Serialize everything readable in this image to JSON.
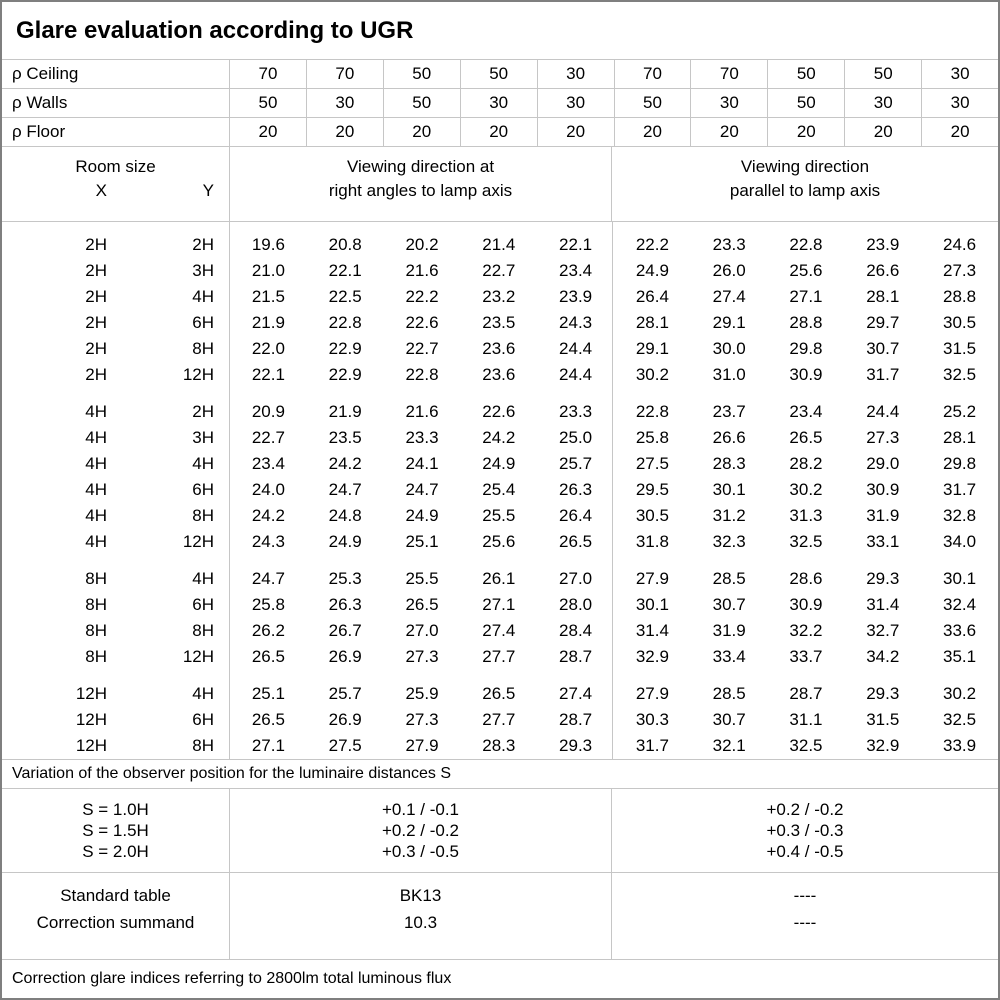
{
  "title": "Glare evaluation according to UGR",
  "reflectance_rows": [
    {
      "label": "ρ Ceiling",
      "values": [
        "70",
        "70",
        "50",
        "50",
        "30",
        "70",
        "70",
        "50",
        "50",
        "30"
      ]
    },
    {
      "label": "ρ Walls",
      "values": [
        "50",
        "30",
        "50",
        "30",
        "30",
        "50",
        "30",
        "50",
        "30",
        "30"
      ]
    },
    {
      "label": "ρ Floor",
      "values": [
        "20",
        "20",
        "20",
        "20",
        "20",
        "20",
        "20",
        "20",
        "20",
        "20"
      ]
    }
  ],
  "room_header": {
    "title": "Room size",
    "x_label": "X",
    "y_label": "Y"
  },
  "direction_headers": {
    "perpendicular": [
      "Viewing direction at",
      "right angles to lamp axis"
    ],
    "parallel": [
      "Viewing direction",
      "parallel to lamp axis"
    ]
  },
  "ugr_blocks": [
    {
      "rows": [
        {
          "x": "2H",
          "y": "2H",
          "values": [
            "19.6",
            "20.8",
            "20.2",
            "21.4",
            "22.1",
            "22.2",
            "23.3",
            "22.8",
            "23.9",
            "24.6"
          ]
        },
        {
          "x": "2H",
          "y": "3H",
          "values": [
            "21.0",
            "22.1",
            "21.6",
            "22.7",
            "23.4",
            "24.9",
            "26.0",
            "25.6",
            "26.6",
            "27.3"
          ]
        },
        {
          "x": "2H",
          "y": "4H",
          "values": [
            "21.5",
            "22.5",
            "22.2",
            "23.2",
            "23.9",
            "26.4",
            "27.4",
            "27.1",
            "28.1",
            "28.8"
          ]
        },
        {
          "x": "2H",
          "y": "6H",
          "values": [
            "21.9",
            "22.8",
            "22.6",
            "23.5",
            "24.3",
            "28.1",
            "29.1",
            "28.8",
            "29.7",
            "30.5"
          ]
        },
        {
          "x": "2H",
          "y": "8H",
          "values": [
            "22.0",
            "22.9",
            "22.7",
            "23.6",
            "24.4",
            "29.1",
            "30.0",
            "29.8",
            "30.7",
            "31.5"
          ]
        },
        {
          "x": "2H",
          "y": "12H",
          "values": [
            "22.1",
            "22.9",
            "22.8",
            "23.6",
            "24.4",
            "30.2",
            "31.0",
            "30.9",
            "31.7",
            "32.5"
          ]
        }
      ]
    },
    {
      "rows": [
        {
          "x": "4H",
          "y": "2H",
          "values": [
            "20.9",
            "21.9",
            "21.6",
            "22.6",
            "23.3",
            "22.8",
            "23.7",
            "23.4",
            "24.4",
            "25.2"
          ]
        },
        {
          "x": "4H",
          "y": "3H",
          "values": [
            "22.7",
            "23.5",
            "23.3",
            "24.2",
            "25.0",
            "25.8",
            "26.6",
            "26.5",
            "27.3",
            "28.1"
          ]
        },
        {
          "x": "4H",
          "y": "4H",
          "values": [
            "23.4",
            "24.2",
            "24.1",
            "24.9",
            "25.7",
            "27.5",
            "28.3",
            "28.2",
            "29.0",
            "29.8"
          ]
        },
        {
          "x": "4H",
          "y": "6H",
          "values": [
            "24.0",
            "24.7",
            "24.7",
            "25.4",
            "26.3",
            "29.5",
            "30.1",
            "30.2",
            "30.9",
            "31.7"
          ]
        },
        {
          "x": "4H",
          "y": "8H",
          "values": [
            "24.2",
            "24.8",
            "24.9",
            "25.5",
            "26.4",
            "30.5",
            "31.2",
            "31.3",
            "31.9",
            "32.8"
          ]
        },
        {
          "x": "4H",
          "y": "12H",
          "values": [
            "24.3",
            "24.9",
            "25.1",
            "25.6",
            "26.5",
            "31.8",
            "32.3",
            "32.5",
            "33.1",
            "34.0"
          ]
        }
      ]
    },
    {
      "rows": [
        {
          "x": "8H",
          "y": "4H",
          "values": [
            "24.7",
            "25.3",
            "25.5",
            "26.1",
            "27.0",
            "27.9",
            "28.5",
            "28.6",
            "29.3",
            "30.1"
          ]
        },
        {
          "x": "8H",
          "y": "6H",
          "values": [
            "25.8",
            "26.3",
            "26.5",
            "27.1",
            "28.0",
            "30.1",
            "30.7",
            "30.9",
            "31.4",
            "32.4"
          ]
        },
        {
          "x": "8H",
          "y": "8H",
          "values": [
            "26.2",
            "26.7",
            "27.0",
            "27.4",
            "28.4",
            "31.4",
            "31.9",
            "32.2",
            "32.7",
            "33.6"
          ]
        },
        {
          "x": "8H",
          "y": "12H",
          "values": [
            "26.5",
            "26.9",
            "27.3",
            "27.7",
            "28.7",
            "32.9",
            "33.4",
            "33.7",
            "34.2",
            "35.1"
          ]
        }
      ]
    },
    {
      "rows": [
        {
          "x": "12H",
          "y": "4H",
          "values": [
            "25.1",
            "25.7",
            "25.9",
            "26.5",
            "27.4",
            "27.9",
            "28.5",
            "28.7",
            "29.3",
            "30.2"
          ]
        },
        {
          "x": "12H",
          "y": "6H",
          "values": [
            "26.5",
            "26.9",
            "27.3",
            "27.7",
            "28.7",
            "30.3",
            "30.7",
            "31.1",
            "31.5",
            "32.5"
          ]
        },
        {
          "x": "12H",
          "y": "8H",
          "values": [
            "27.1",
            "27.5",
            "27.9",
            "28.3",
            "29.3",
            "31.7",
            "32.1",
            "32.5",
            "32.9",
            "33.9"
          ]
        }
      ]
    }
  ],
  "variation_note": "Variation of the observer position for the luminaire distances S",
  "s_block": {
    "labels": [
      "S = 1.0H",
      "S = 1.5H",
      "S = 2.0H"
    ],
    "perpendicular": [
      "+0.1 / -0.1",
      "+0.2 / -0.2",
      "+0.3 / -0.5"
    ],
    "parallel": [
      "+0.2 / -0.2",
      "+0.3 / -0.3",
      "+0.4 / -0.5"
    ]
  },
  "summary_block": {
    "rows": [
      {
        "label": "Standard table",
        "perpendicular": "BK13",
        "parallel": "----"
      },
      {
        "label": "Correction summand",
        "perpendicular": "10.3",
        "parallel": "----"
      }
    ]
  },
  "footer_note": "Correction glare indices referring to 2800lm total luminous flux"
}
